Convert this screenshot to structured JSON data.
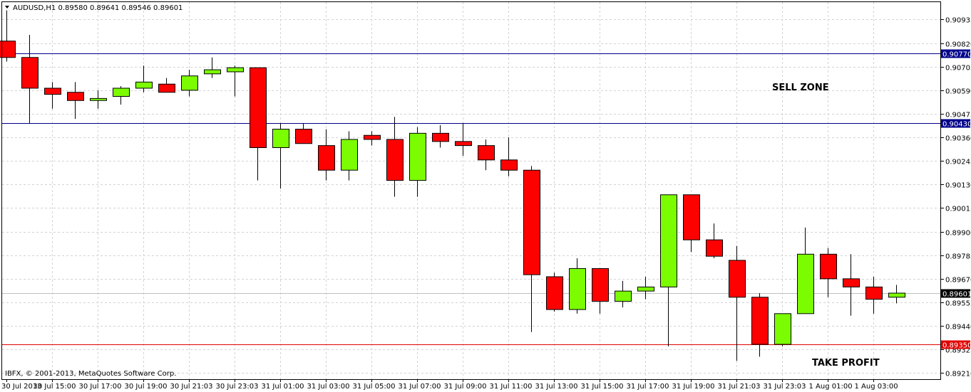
{
  "header": {
    "symbol_line": "AUDUSD,H1  0.89580 0.89641 0.89546 0.89601",
    "copyright": "IBFX, © 2001-2013, MetaQuotes Software Corp."
  },
  "annotations": {
    "sell_zone": "SELL ZONE",
    "take_profit": "TAKE PROFIT"
  },
  "colors": {
    "bull": "#7cfc00",
    "bear": "#ff0000",
    "grid": "#d3d3d3",
    "resistance_line": "#00008b",
    "tp_line": "#e00000",
    "price_marker_bg": "#000000"
  },
  "chart_data": {
    "type": "candlestick",
    "ylim": [
      0.8918,
      0.9102
    ],
    "y_ticks": [
      "0.90935",
      "0.90820",
      "0.90705",
      "0.90590",
      "0.90475",
      "0.90360",
      "0.90245",
      "0.90130",
      "0.90015",
      "0.89900",
      "0.89785",
      "0.89670",
      "0.89555",
      "0.89440",
      "0.89325",
      "0.89210"
    ],
    "x_labels": [
      "30 Jul 2013",
      "30 Jul 15:00",
      "30 Jul 17:00",
      "30 Jul 19:00",
      "30 Jul 21:03",
      "30 Jul 23:03",
      "31 Jul 01:00",
      "31 Jul 03:00",
      "31 Jul 05:00",
      "31 Jul 07:00",
      "31 Jul 09:00",
      "31 Jul 11:00",
      "31 Jul 13:00",
      "31 Jul 15:00",
      "31 Jul 17:00",
      "31 Jul 19:00",
      "31 Jul 21:03",
      "31 Jul 23:03",
      "1 Aug 01:00",
      "1 Aug 03:00"
    ],
    "horizontal_lines": [
      {
        "value": 0.9077,
        "label": "0.90770",
        "kind": "resistance"
      },
      {
        "value": 0.9043,
        "label": "0.90430",
        "kind": "resistance"
      },
      {
        "value": 0.8935,
        "label": "0.89350",
        "kind": "take-profit"
      }
    ],
    "current_price": {
      "value": 0.89601,
      "label": "0.89601"
    },
    "candles": [
      {
        "o": 0.9083,
        "h": 0.9098,
        "l": 0.9073,
        "c": 0.9075
      },
      {
        "o": 0.9075,
        "h": 0.9086,
        "l": 0.9043,
        "c": 0.906
      },
      {
        "o": 0.906,
        "h": 0.9063,
        "l": 0.905,
        "c": 0.9057
      },
      {
        "o": 0.9058,
        "h": 0.9063,
        "l": 0.9045,
        "c": 0.9054
      },
      {
        "o": 0.9054,
        "h": 0.9059,
        "l": 0.905,
        "c": 0.9055
      },
      {
        "o": 0.9056,
        "h": 0.9061,
        "l": 0.9052,
        "c": 0.906
      },
      {
        "o": 0.906,
        "h": 0.9071,
        "l": 0.9058,
        "c": 0.9063
      },
      {
        "o": 0.9062,
        "h": 0.9065,
        "l": 0.9058,
        "c": 0.9058
      },
      {
        "o": 0.9059,
        "h": 0.9069,
        "l": 0.9056,
        "c": 0.9066
      },
      {
        "o": 0.9067,
        "h": 0.9075,
        "l": 0.9065,
        "c": 0.9069
      },
      {
        "o": 0.9068,
        "h": 0.9071,
        "l": 0.9056,
        "c": 0.907
      },
      {
        "o": 0.907,
        "h": 0.907,
        "l": 0.9015,
        "c": 0.9031
      },
      {
        "o": 0.9031,
        "h": 0.9043,
        "l": 0.9011,
        "c": 0.904
      },
      {
        "o": 0.904,
        "h": 0.9043,
        "l": 0.9033,
        "c": 0.9033
      },
      {
        "o": 0.9032,
        "h": 0.904,
        "l": 0.9015,
        "c": 0.902
      },
      {
        "o": 0.902,
        "h": 0.9039,
        "l": 0.9015,
        "c": 0.9035
      },
      {
        "o": 0.9037,
        "h": 0.9039,
        "l": 0.9032,
        "c": 0.9035
      },
      {
        "o": 0.9035,
        "h": 0.9046,
        "l": 0.9007,
        "c": 0.9015
      },
      {
        "o": 0.9015,
        "h": 0.9041,
        "l": 0.9007,
        "c": 0.9038
      },
      {
        "o": 0.9038,
        "h": 0.9042,
        "l": 0.9031,
        "c": 0.9034
      },
      {
        "o": 0.9034,
        "h": 0.9043,
        "l": 0.9027,
        "c": 0.9032
      },
      {
        "o": 0.9032,
        "h": 0.9035,
        "l": 0.902,
        "c": 0.9025
      },
      {
        "o": 0.9025,
        "h": 0.9036,
        "l": 0.9017,
        "c": 0.902
      },
      {
        "o": 0.902,
        "h": 0.9022,
        "l": 0.8941,
        "c": 0.8969
      },
      {
        "o": 0.8968,
        "h": 0.897,
        "l": 0.8951,
        "c": 0.8952
      },
      {
        "o": 0.8952,
        "h": 0.8977,
        "l": 0.895,
        "c": 0.8972
      },
      {
        "o": 0.8972,
        "h": 0.8972,
        "l": 0.895,
        "c": 0.8956
      },
      {
        "o": 0.8956,
        "h": 0.8966,
        "l": 0.8953,
        "c": 0.8961
      },
      {
        "o": 0.8961,
        "h": 0.8968,
        "l": 0.8957,
        "c": 0.8963
      },
      {
        "o": 0.8963,
        "h": 0.9008,
        "l": 0.8934,
        "c": 0.9008
      },
      {
        "o": 0.9008,
        "h": 0.9008,
        "l": 0.898,
        "c": 0.8986
      },
      {
        "o": 0.8986,
        "h": 0.8994,
        "l": 0.8977,
        "c": 0.8978
      },
      {
        "o": 0.8976,
        "h": 0.8983,
        "l": 0.8927,
        "c": 0.8958
      },
      {
        "o": 0.8958,
        "h": 0.896,
        "l": 0.8929,
        "c": 0.8935
      },
      {
        "o": 0.8935,
        "h": 0.895,
        "l": 0.8934,
        "c": 0.895
      },
      {
        "o": 0.895,
        "h": 0.8992,
        "l": 0.895,
        "c": 0.8979
      },
      {
        "o": 0.8979,
        "h": 0.8982,
        "l": 0.8958,
        "c": 0.8967
      },
      {
        "o": 0.8967,
        "h": 0.8979,
        "l": 0.8949,
        "c": 0.8963
      },
      {
        "o": 0.8963,
        "h": 0.8968,
        "l": 0.895,
        "c": 0.8957
      },
      {
        "o": 0.8958,
        "h": 0.8964,
        "l": 0.8955,
        "c": 0.896
      }
    ]
  }
}
